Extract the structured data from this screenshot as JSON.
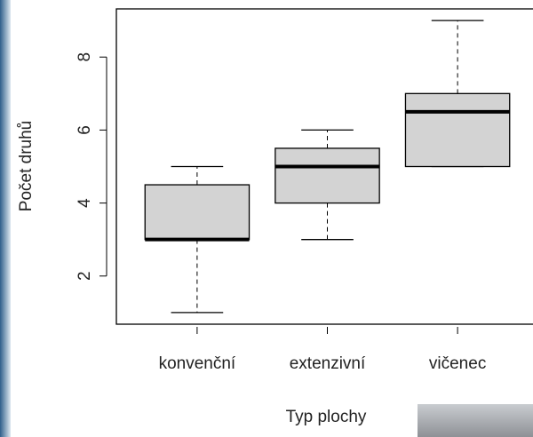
{
  "chart_data": {
    "type": "boxplot",
    "x_label": "Typ plochy",
    "y_label": "Počet druhů",
    "categories": [
      "konvenční",
      "extenzivní",
      "vičenec"
    ],
    "boxes": [
      {
        "min": 1,
        "q1": 3,
        "median": 3,
        "q3": 4.5,
        "max": 5
      },
      {
        "min": 3,
        "q1": 4,
        "median": 5,
        "q3": 5.5,
        "max": 6
      },
      {
        "min": 5,
        "q1": 5,
        "median": 6.5,
        "q3": 7,
        "max": 9
      }
    ],
    "color": "#d3d3d3",
    "ylim": [
      0.68,
      9.32
    ],
    "yticks": [
      2,
      4,
      6,
      8
    ]
  }
}
